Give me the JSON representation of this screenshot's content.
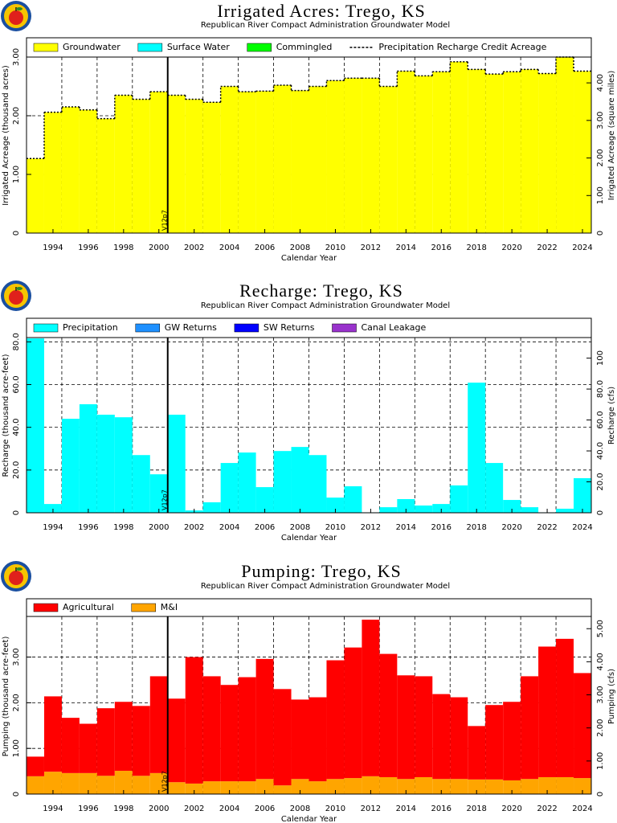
{
  "chart_data": [
    {
      "type": "bar",
      "title": "Irrigated Acres: Trego, KS",
      "subtitle": "Republican River Compact Administration Groundwater Model",
      "x_label": "Calendar Year",
      "y_label": "Irrigated Acreage (thousand acres)",
      "y2_label": "Irrigated Acreage (square miles)",
      "x": [
        1993,
        1994,
        1995,
        1996,
        1997,
        1998,
        1999,
        2000,
        2001,
        2002,
        2003,
        2004,
        2005,
        2006,
        2007,
        2008,
        2009,
        2010,
        2011,
        2012,
        2013,
        2014,
        2015,
        2016,
        2017,
        2018,
        2019,
        2020,
        2021,
        2022,
        2023,
        2024
      ],
      "xlim": [
        1992.5,
        2024.5
      ],
      "xticks": [
        1994,
        1996,
        1998,
        2000,
        2002,
        2004,
        2006,
        2008,
        2010,
        2012,
        2014,
        2016,
        2018,
        2020,
        2022,
        2024
      ],
      "ylim": [
        0,
        3.0
      ],
      "yticks": [
        0,
        {
          "value": 1,
          "label": "1.00"
        },
        {
          "value": 2,
          "label": "2.00"
        },
        {
          "value": 3,
          "label": "3.00"
        }
      ],
      "y2lim": [
        0,
        4.6875
      ],
      "y2ticks": [
        0,
        {
          "value": 1,
          "label": "1.00"
        },
        {
          "value": 2,
          "label": "2.00"
        },
        {
          "value": 3,
          "label": "3.00"
        },
        {
          "value": 4,
          "label": "4.00"
        }
      ],
      "grid": true,
      "stacked": true,
      "annotation": {
        "text": "V12p7",
        "x": 2000.5
      },
      "series": [
        {
          "name": "Groundwater",
          "color": "#ffff00",
          "values": [
            1.27,
            2.06,
            2.15,
            2.1,
            1.95,
            2.35,
            2.28,
            2.41,
            2.35,
            2.28,
            2.23,
            2.5,
            2.41,
            2.42,
            2.52,
            2.43,
            2.5,
            2.6,
            2.64,
            2.64,
            2.5,
            2.76,
            2.68,
            2.75,
            2.92,
            2.79,
            2.71,
            2.75,
            2.79,
            2.72,
            3.0,
            2.76
          ]
        },
        {
          "name": "Surface Water",
          "color": "#00ffff",
          "values": [
            0,
            0,
            0,
            0,
            0,
            0,
            0,
            0,
            0,
            0,
            0,
            0,
            0,
            0,
            0,
            0,
            0,
            0,
            0,
            0,
            0,
            0,
            0,
            0,
            0,
            0,
            0,
            0,
            0,
            0,
            0,
            0
          ]
        },
        {
          "name": "Commingled",
          "color": "#00ff00",
          "values": [
            0,
            0,
            0,
            0,
            0,
            0,
            0,
            0,
            0,
            0,
            0,
            0,
            0,
            0,
            0,
            0,
            0,
            0,
            0,
            0,
            0,
            0,
            0,
            0,
            0,
            0,
            0,
            0,
            0,
            0,
            0,
            0
          ]
        },
        {
          "name": "Precipitation Recharge Credit Acreage",
          "color": "#000000",
          "style": "dashed",
          "values": [
            1.27,
            2.06,
            2.15,
            2.1,
            1.95,
            2.35,
            2.28,
            2.41,
            2.35,
            2.28,
            2.23,
            2.5,
            2.41,
            2.42,
            2.52,
            2.43,
            2.5,
            2.6,
            2.64,
            2.64,
            2.5,
            2.76,
            2.68,
            2.75,
            2.92,
            2.79,
            2.71,
            2.75,
            2.79,
            2.72,
            3.0,
            2.76
          ]
        }
      ]
    },
    {
      "type": "bar",
      "title": "Recharge: Trego, KS",
      "subtitle": "Republican River Compact Administration Groundwater Model",
      "x_label": "Calendar Year",
      "y_label": "Recharge (thousand acre-feet)",
      "y2_label": "Recharge (cfs)",
      "x": [
        1993,
        1994,
        1995,
        1996,
        1997,
        1998,
        1999,
        2000,
        2001,
        2002,
        2003,
        2004,
        2005,
        2006,
        2007,
        2008,
        2009,
        2010,
        2011,
        2012,
        2013,
        2014,
        2015,
        2016,
        2017,
        2018,
        2019,
        2020,
        2021,
        2022,
        2023,
        2024
      ],
      "xlim": [
        1992.5,
        2024.5
      ],
      "xticks": [
        1994,
        1996,
        1998,
        2000,
        2002,
        2004,
        2006,
        2008,
        2010,
        2012,
        2014,
        2016,
        2018,
        2020,
        2022,
        2024
      ],
      "ylim": [
        0,
        82
      ],
      "yticks": [
        0,
        {
          "value": 20,
          "label": "20.0"
        },
        {
          "value": 40,
          "label": "40.0"
        },
        {
          "value": 60,
          "label": "60.0"
        },
        {
          "value": 80,
          "label": "80.0"
        }
      ],
      "y2lim": [
        0,
        113.3
      ],
      "y2ticks": [
        0,
        {
          "value": 20,
          "label": "20.0"
        },
        {
          "value": 40,
          "label": "40.0"
        },
        {
          "value": 60,
          "label": "60.0"
        },
        {
          "value": 80,
          "label": "80.0"
        },
        100
      ],
      "grid": true,
      "stacked": true,
      "annotation": {
        "text": "V12p7",
        "x": 2000.5
      },
      "series": [
        {
          "name": "Precipitation",
          "color": "#00ffff",
          "values": [
            81.6,
            4.1,
            44,
            50.8,
            45.9,
            44.7,
            27,
            18,
            45.9,
            1.1,
            4.9,
            23.3,
            28.2,
            12,
            28.9,
            30.8,
            27,
            7.1,
            12.4,
            0.2,
            2.6,
            6.4,
            3.4,
            4.1,
            12.8,
            60.9,
            23.3,
            6.0,
            2.6,
            0.2,
            1.9,
            16.2
          ]
        },
        {
          "name": "GW Returns",
          "color": "#1e90ff",
          "values": [
            0,
            0,
            0,
            0,
            0,
            0,
            0,
            0,
            0,
            0,
            0,
            0,
            0,
            0,
            0,
            0,
            0,
            0,
            0,
            0,
            0,
            0,
            0,
            0,
            0,
            0,
            0,
            0,
            0,
            0,
            0,
            0
          ]
        },
        {
          "name": "SW Returns",
          "color": "#0000ff",
          "values": [
            0,
            0,
            0,
            0,
            0,
            0,
            0,
            0,
            0,
            0,
            0,
            0,
            0,
            0,
            0,
            0,
            0,
            0,
            0,
            0,
            0,
            0,
            0,
            0,
            0,
            0,
            0,
            0,
            0,
            0,
            0,
            0
          ]
        },
        {
          "name": "Canal Leakage",
          "color": "#9932cc",
          "values": [
            0,
            0,
            0,
            0,
            0,
            0,
            0,
            0,
            0,
            0,
            0,
            0,
            0,
            0,
            0,
            0,
            0,
            0,
            0,
            0,
            0,
            0,
            0,
            0,
            0,
            0,
            0,
            0,
            0,
            0,
            0,
            0
          ]
        }
      ]
    },
    {
      "type": "bar",
      "title": "Pumping: Trego, KS",
      "subtitle": "Republican River Compact Administration Groundwater Model",
      "x_label": "Calendar Year",
      "y_label": "Pumping (thousand acre-feet)",
      "y2_label": "Pumping (cfs)",
      "x": [
        1993,
        1994,
        1995,
        1996,
        1997,
        1998,
        1999,
        2000,
        2001,
        2002,
        2003,
        2004,
        2005,
        2006,
        2007,
        2008,
        2009,
        2010,
        2011,
        2012,
        2013,
        2014,
        2015,
        2016,
        2017,
        2018,
        2019,
        2020,
        2021,
        2022,
        2023,
        2024
      ],
      "xlim": [
        1992.5,
        2024.5
      ],
      "xticks": [
        1994,
        1996,
        1998,
        2000,
        2002,
        2004,
        2006,
        2008,
        2010,
        2012,
        2014,
        2016,
        2018,
        2020,
        2022,
        2024
      ],
      "ylim": [
        0,
        3.89
      ],
      "yticks": [
        0,
        {
          "value": 1,
          "label": "1.00"
        },
        {
          "value": 2,
          "label": "2.00"
        },
        {
          "value": 3,
          "label": "3.00"
        }
      ],
      "y2lim": [
        0,
        5.37
      ],
      "y2ticks": [
        0,
        {
          "value": 1,
          "label": "1.00"
        },
        {
          "value": 2,
          "label": "2.00"
        },
        {
          "value": 3,
          "label": "3.00"
        },
        {
          "value": 4,
          "label": "4.00"
        },
        {
          "value": 5,
          "label": "5.00"
        }
      ],
      "grid": true,
      "stacked": true,
      "annotation": {
        "text": "V12p7",
        "x": 2000.5
      },
      "series": [
        {
          "name": "Agricultural",
          "color": "#ff0000",
          "values": [
            0.43,
            1.65,
            1.21,
            1.08,
            1.48,
            1.51,
            1.53,
            2.12,
            1.83,
            2.77,
            2.3,
            2.11,
            2.28,
            2.63,
            2.11,
            1.74,
            1.84,
            2.6,
            2.86,
            3.43,
            2.7,
            2.27,
            2.21,
            1.86,
            1.79,
            1.17,
            1.63,
            1.72,
            2.25,
            2.86,
            3.03,
            2.3
          ]
        },
        {
          "name": "M&I",
          "color": "#ffa500",
          "values": [
            0.39,
            0.49,
            0.46,
            0.46,
            0.4,
            0.51,
            0.4,
            0.46,
            0.26,
            0.23,
            0.28,
            0.28,
            0.28,
            0.33,
            0.19,
            0.33,
            0.28,
            0.33,
            0.35,
            0.39,
            0.37,
            0.33,
            0.37,
            0.33,
            0.33,
            0.32,
            0.32,
            0.3,
            0.33,
            0.37,
            0.37,
            0.35
          ]
        }
      ]
    }
  ]
}
